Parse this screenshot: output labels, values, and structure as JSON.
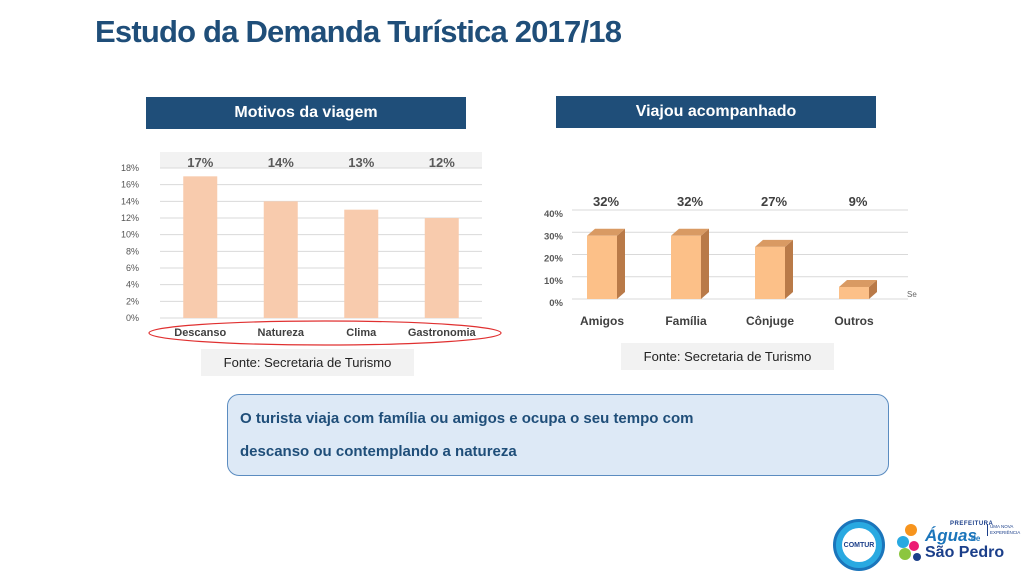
{
  "slide": {
    "title": "Estudo da Demanda Turística 2017/18",
    "callout_line1": "O turista viaja com família ou amigos e ocupa o seu tempo com",
    "callout_line2": "descanso ou contemplando a natureza"
  },
  "logos": {
    "comtur": "COMTUR",
    "aguas_prefix": "PREFEITURA",
    "aguas_word1": "Águas",
    "aguas_de": "de",
    "aguas_word2": "São Pedro",
    "aguas_slogan": "UMA NOVA EXPERIÊNCIA"
  },
  "colors": {
    "header": "#1f4e79",
    "bar1": "#f8cbad",
    "bar2_front": "#fcc088",
    "bar2_side": "#b97a48",
    "bar2_top": "#d99a63",
    "highlight_ellipse": "#e03030"
  },
  "chart_data": [
    {
      "type": "bar",
      "title": "Motivos da viagem",
      "categories": [
        "Descanso",
        "Natureza",
        "Clima",
        "Gastronomia"
      ],
      "values": [
        17,
        14,
        13,
        12
      ],
      "data_labels": [
        "17%",
        "14%",
        "13%",
        "12%"
      ],
      "yticks": [
        "0%",
        "2%",
        "4%",
        "6%",
        "8%",
        "10%",
        "12%",
        "14%",
        "16%",
        "18%"
      ],
      "ylim": [
        0,
        18
      ],
      "grid": true,
      "source": "Fonte: Secretaria de Turismo"
    },
    {
      "type": "bar",
      "style": "3d",
      "title": "Viajou acompanhado",
      "categories": [
        "Amigos",
        "Família",
        "Cônjuge",
        "Outros"
      ],
      "values": [
        32,
        32,
        27,
        9
      ],
      "data_labels": [
        "32%",
        "32%",
        "27%",
        "9%"
      ],
      "yticks": [
        "0%",
        "10%",
        "20%",
        "30%",
        "40%"
      ],
      "ylim": [
        0,
        40
      ],
      "grid": true,
      "axis_stub": "Se",
      "source": "Fonte: Secretaria de Turismo"
    }
  ]
}
